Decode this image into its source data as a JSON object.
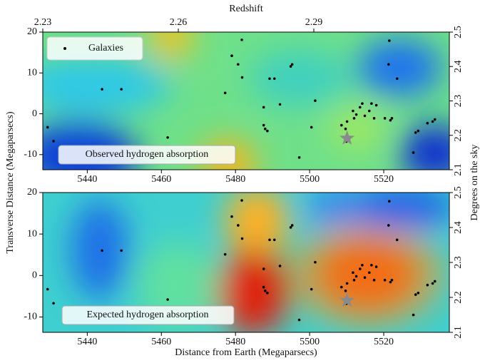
{
  "chart_data": [
    {
      "type": "scatter",
      "x2label": "Redshift",
      "ylabel": "Transverse Distance (Megaparsecs)",
      "y2label": "Degrees on the sky",
      "annotation": "Observed hydrogen absorption",
      "xlim": [
        5428,
        5537.7
      ],
      "xticks": [
        5440,
        5460,
        5480,
        5500,
        5520
      ],
      "x2lim": [
        2.23,
        2.32
      ],
      "x2ticks": [
        2.23,
        2.26,
        2.29
      ],
      "ylim": [
        -13.7,
        20
      ],
      "yticks": [
        -10,
        0,
        10,
        20
      ],
      "y2lim": [
        2.1,
        2.5
      ],
      "y2ticks": [
        2.1,
        2.2,
        2.3,
        2.4,
        2.5
      ],
      "legend": "upper left",
      "star": {
        "x": 5510.1,
        "y": -6,
        "color": "#8a8a8a"
      },
      "series": [
        {
          "name": "Galaxies",
          "color": "#000000",
          "x": [
            5429.3,
            5430.9,
            5444.0,
            5449.2,
            5461.7,
            5477.2,
            5479.0,
            5480.7,
            5481.7,
            5481.8,
            5487.6,
            5487.6,
            5488.0,
            5488.6,
            5489.2,
            5490.5,
            5492.0,
            5494.9,
            5495.3,
            5497.2,
            5500.5,
            5501.5,
            5508.6,
            5509.7,
            5509.9,
            5510.1,
            5511.7,
            5512.0,
            5512.6,
            5513.6,
            5514.2,
            5514.9,
            5516.1,
            5516.7,
            5517.4,
            5518.0,
            5520.3,
            5521.3,
            5521.5,
            5521.8,
            5522.2,
            5523.6,
            5528.0,
            5528.6,
            5529.3,
            5531.8,
            5533.2,
            5533.8
          ],
          "y": [
            -3.3,
            -6.7,
            6.0,
            6.0,
            -5.8,
            5.1,
            14.2,
            12.1,
            18.1,
            8.9,
            1.6,
            -2.8,
            -3.7,
            -4.2,
            8.6,
            8.6,
            2.3,
            11.6,
            12.1,
            -10.7,
            -3.3,
            3.2,
            -2.8,
            -3.7,
            -6.8,
            -1.9,
            0.7,
            -1.1,
            -0.2,
            1.6,
            2.5,
            -0.5,
            0.7,
            2.5,
            -1.1,
            2.1,
            -1.1,
            12.1,
            17.9,
            -1.6,
            -1.1,
            8.6,
            -9.5,
            -4.6,
            -4.2,
            -2.3,
            -1.9,
            -1.4
          ]
        }
      ]
    },
    {
      "type": "scatter",
      "xlabel": "Distance from Earth (Megaparsecs)",
      "annotation": "Expected hydrogen absorption",
      "xlim": [
        5428,
        5537.7
      ],
      "xticks": [
        5440,
        5460,
        5480,
        5500,
        5520
      ],
      "ylim": [
        -13.7,
        20
      ],
      "yticks": [
        -10,
        0,
        10,
        20
      ],
      "y2lim": [
        2.1,
        2.5
      ],
      "y2ticks": [
        2.1,
        2.2,
        2.3,
        2.4,
        2.5
      ],
      "star": {
        "x": 5510.1,
        "y": -6,
        "color": "#8a8a8a"
      },
      "series": [
        {
          "color": "#000000",
          "x": [
            5429.3,
            5430.9,
            5444.0,
            5449.2,
            5461.7,
            5477.2,
            5479.0,
            5480.7,
            5481.7,
            5481.8,
            5487.6,
            5487.6,
            5488.0,
            5488.6,
            5489.2,
            5490.5,
            5492.0,
            5494.9,
            5495.3,
            5497.2,
            5500.5,
            5501.5,
            5508.6,
            5509.7,
            5509.9,
            5510.1,
            5511.7,
            5512.0,
            5512.6,
            5513.6,
            5514.2,
            5514.9,
            5516.1,
            5516.7,
            5517.4,
            5518.0,
            5520.3,
            5521.3,
            5521.5,
            5521.8,
            5522.2,
            5523.6,
            5528.0,
            5528.6,
            5529.3,
            5531.8,
            5533.2,
            5533.8
          ],
          "y": [
            -3.3,
            -6.7,
            6.0,
            6.0,
            -5.8,
            5.1,
            14.2,
            12.1,
            18.1,
            8.9,
            1.6,
            -2.8,
            -3.7,
            -4.2,
            8.6,
            8.6,
            2.3,
            11.6,
            12.1,
            -10.7,
            -3.3,
            3.2,
            -2.8,
            -3.7,
            -6.8,
            -1.9,
            0.7,
            -1.1,
            -0.2,
            1.6,
            2.5,
            -0.5,
            0.7,
            2.5,
            -1.1,
            2.1,
            -1.1,
            12.1,
            17.9,
            -1.6,
            -1.1,
            8.6,
            -9.5,
            -4.6,
            -4.2,
            -2.3,
            -1.9,
            -1.4
          ]
        }
      ]
    }
  ]
}
